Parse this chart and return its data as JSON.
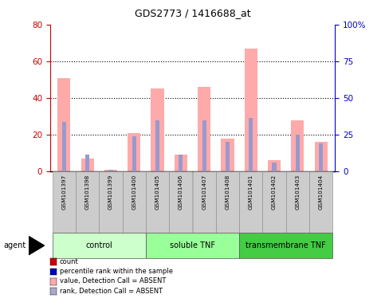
{
  "title": "GDS2773 / 1416688_at",
  "samples": [
    "GSM101397",
    "GSM101398",
    "GSM101399",
    "GSM101400",
    "GSM101405",
    "GSM101406",
    "GSM101407",
    "GSM101408",
    "GSM101401",
    "GSM101402",
    "GSM101403",
    "GSM101404"
  ],
  "groups": [
    {
      "name": "control",
      "color": "#ccffcc",
      "starts": 0,
      "ends": 3
    },
    {
      "name": "soluble TNF",
      "color": "#99ff99",
      "starts": 4,
      "ends": 7
    },
    {
      "name": "transmembrane TNF",
      "color": "#44cc44",
      "starts": 8,
      "ends": 11
    }
  ],
  "pink_bars": [
    51,
    7,
    1,
    21,
    45,
    9,
    46,
    18,
    67,
    6,
    28,
    16
  ],
  "blue_bars": [
    27,
    9,
    1,
    19,
    28,
    9,
    28,
    16,
    29,
    5,
    20,
    15
  ],
  "ylim_left": [
    0,
    80
  ],
  "ylim_right": [
    0,
    100
  ],
  "yticks_left": [
    0,
    20,
    40,
    60,
    80
  ],
  "yticks_right": [
    0,
    25,
    50,
    75,
    100
  ],
  "ytick_labels_right": [
    "0",
    "25",
    "50",
    "75",
    "100%"
  ],
  "left_axis_color": "#cc0000",
  "right_axis_color": "#0000cc",
  "pink_color": "#ffaaaa",
  "blue_color": "#9999cc",
  "red_color": "#cc0000",
  "dark_blue_color": "#0000bb",
  "tick_area_color": "#cccccc",
  "legend_labels": [
    "count",
    "percentile rank within the sample",
    "value, Detection Call = ABSENT",
    "rank, Detection Call = ABSENT"
  ],
  "legend_colors": [
    "#cc0000",
    "#0000bb",
    "#ffaaaa",
    "#aaaacc"
  ],
  "agent_label": "agent"
}
